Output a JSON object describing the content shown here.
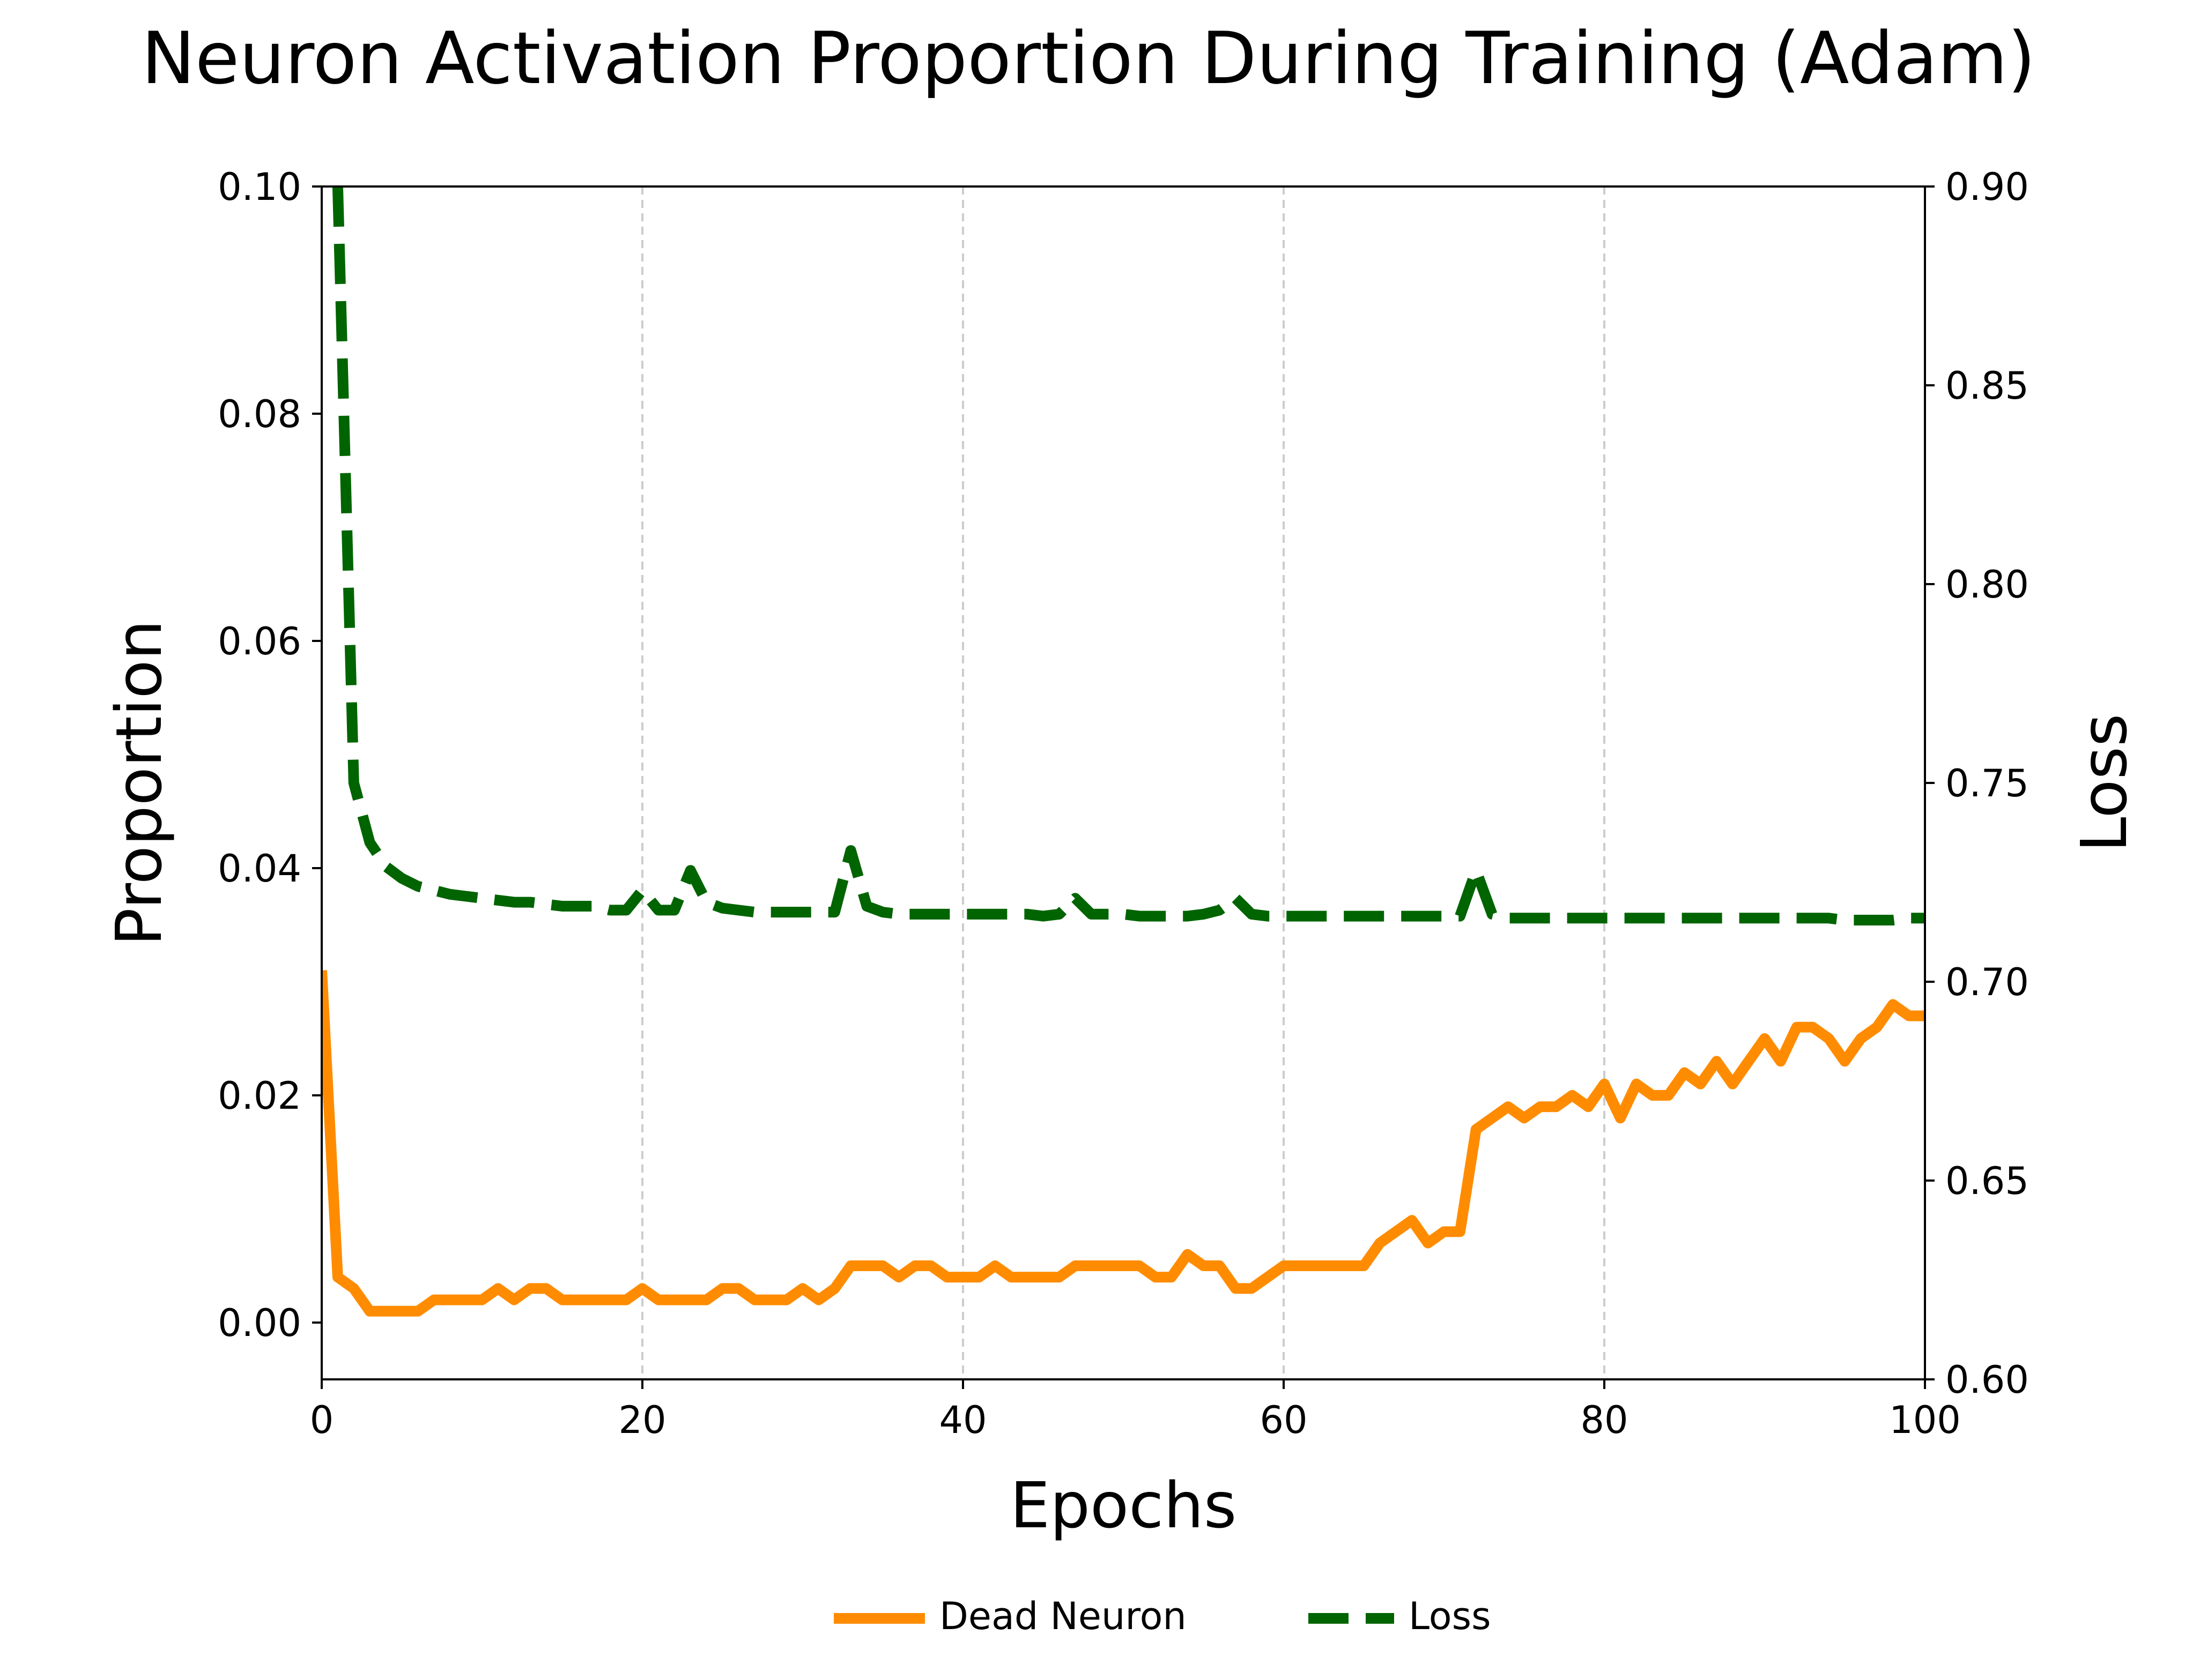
{
  "chart_data": {
    "type": "line",
    "title": "Neuron Activation Proportion During Training (Adam)",
    "xlabel": "Epochs",
    "ylabel": "Proportion",
    "y2label": "Loss",
    "xlim": [
      0,
      100
    ],
    "ylim": [
      -0.005,
      0.1
    ],
    "y2lim": [
      0.6,
      0.9
    ],
    "x_ticks": [
      0,
      20,
      40,
      60,
      80,
      100
    ],
    "x_tick_labels": [
      "0",
      "20",
      "40",
      "60",
      "80",
      "100"
    ],
    "y_ticks": [
      0.0,
      0.02,
      0.04,
      0.06,
      0.08,
      0.1
    ],
    "y_tick_labels": [
      "0.00",
      "0.02",
      "0.04",
      "0.06",
      "0.08",
      "0.10"
    ],
    "y2_ticks": [
      0.6,
      0.65,
      0.7,
      0.75,
      0.8,
      0.85,
      0.9
    ],
    "y2_tick_labels": [
      "0.60",
      "0.65",
      "0.70",
      "0.75",
      "0.80",
      "0.85",
      "0.90"
    ],
    "grid": "vertical dashed",
    "legend_position": "bottom-center",
    "series": [
      {
        "name": "Dead Neuron",
        "axis": "left",
        "color": "#ff8c00",
        "style": "solid",
        "x": [
          0,
          1,
          2,
          3,
          4,
          5,
          6,
          7,
          8,
          9,
          10,
          11,
          12,
          13,
          14,
          15,
          16,
          17,
          18,
          19,
          20,
          21,
          22,
          23,
          24,
          25,
          26,
          27,
          28,
          29,
          30,
          31,
          32,
          33,
          34,
          35,
          36,
          37,
          38,
          39,
          40,
          41,
          42,
          43,
          44,
          45,
          46,
          47,
          48,
          49,
          50,
          51,
          52,
          53,
          54,
          55,
          56,
          57,
          58,
          59,
          60,
          61,
          62,
          63,
          64,
          65,
          66,
          67,
          68,
          69,
          70,
          71,
          72,
          73,
          74,
          75,
          76,
          77,
          78,
          79,
          80,
          81,
          82,
          83,
          84,
          85,
          86,
          87,
          88,
          89,
          90,
          91,
          92,
          93,
          94,
          95,
          96,
          97,
          98,
          99,
          100
        ],
        "values": [
          0.031,
          0.004,
          0.003,
          0.001,
          0.001,
          0.001,
          0.001,
          0.002,
          0.002,
          0.002,
          0.002,
          0.003,
          0.002,
          0.003,
          0.003,
          0.002,
          0.002,
          0.002,
          0.002,
          0.002,
          0.003,
          0.002,
          0.002,
          0.002,
          0.002,
          0.003,
          0.003,
          0.002,
          0.002,
          0.002,
          0.003,
          0.002,
          0.003,
          0.005,
          0.005,
          0.005,
          0.004,
          0.005,
          0.005,
          0.004,
          0.004,
          0.004,
          0.005,
          0.004,
          0.004,
          0.004,
          0.004,
          0.005,
          0.005,
          0.005,
          0.005,
          0.005,
          0.004,
          0.004,
          0.006,
          0.005,
          0.005,
          0.003,
          0.003,
          0.004,
          0.005,
          0.005,
          0.005,
          0.005,
          0.005,
          0.005,
          0.007,
          0.008,
          0.009,
          0.007,
          0.008,
          0.008,
          0.017,
          0.018,
          0.019,
          0.018,
          0.019,
          0.019,
          0.02,
          0.019,
          0.021,
          0.018,
          0.021,
          0.02,
          0.02,
          0.022,
          0.021,
          0.023,
          0.021,
          0.023,
          0.025,
          0.023,
          0.026,
          0.026,
          0.025,
          0.023,
          0.025,
          0.026,
          0.028,
          0.027,
          0.027
        ]
      },
      {
        "name": "Loss",
        "axis": "right",
        "color": "#006400",
        "style": "dashed",
        "x": [
          1,
          2,
          3,
          4,
          5,
          6,
          7,
          8,
          9,
          10,
          11,
          12,
          13,
          14,
          15,
          16,
          17,
          18,
          19,
          20,
          21,
          22,
          23,
          24,
          25,
          26,
          27,
          28,
          29,
          30,
          31,
          32,
          33,
          34,
          35,
          36,
          37,
          38,
          39,
          40,
          41,
          42,
          43,
          44,
          45,
          46,
          47,
          48,
          49,
          50,
          51,
          52,
          53,
          54,
          55,
          56,
          57,
          58,
          59,
          60,
          61,
          62,
          63,
          64,
          65,
          66,
          67,
          68,
          69,
          70,
          71,
          72,
          73,
          74,
          75,
          76,
          77,
          78,
          79,
          80,
          81,
          82,
          83,
          84,
          85,
          86,
          87,
          88,
          89,
          90,
          91,
          92,
          93,
          94,
          95,
          96,
          97,
          98,
          99,
          100
        ],
        "values": [
          0.9,
          0.75,
          0.735,
          0.729,
          0.726,
          0.724,
          0.723,
          0.722,
          0.7215,
          0.721,
          0.7205,
          0.72,
          0.72,
          0.7195,
          0.719,
          0.719,
          0.719,
          0.718,
          0.718,
          0.723,
          0.718,
          0.718,
          0.728,
          0.72,
          0.7185,
          0.718,
          0.7175,
          0.7175,
          0.7175,
          0.7175,
          0.7175,
          0.7175,
          0.733,
          0.719,
          0.7175,
          0.717,
          0.717,
          0.717,
          0.717,
          0.717,
          0.717,
          0.717,
          0.717,
          0.717,
          0.7165,
          0.717,
          0.721,
          0.717,
          0.717,
          0.717,
          0.7165,
          0.7165,
          0.7165,
          0.7165,
          0.717,
          0.718,
          0.721,
          0.717,
          0.7165,
          0.7165,
          0.7165,
          0.7165,
          0.7165,
          0.7165,
          0.7165,
          0.7165,
          0.7165,
          0.7165,
          0.7165,
          0.7165,
          0.7165,
          0.728,
          0.717,
          0.716,
          0.716,
          0.716,
          0.716,
          0.716,
          0.716,
          0.716,
          0.716,
          0.716,
          0.716,
          0.716,
          0.716,
          0.716,
          0.716,
          0.716,
          0.716,
          0.716,
          0.716,
          0.716,
          0.716,
          0.716,
          0.7155,
          0.7155,
          0.7155,
          0.7155,
          0.716,
          0.716
        ]
      }
    ]
  }
}
